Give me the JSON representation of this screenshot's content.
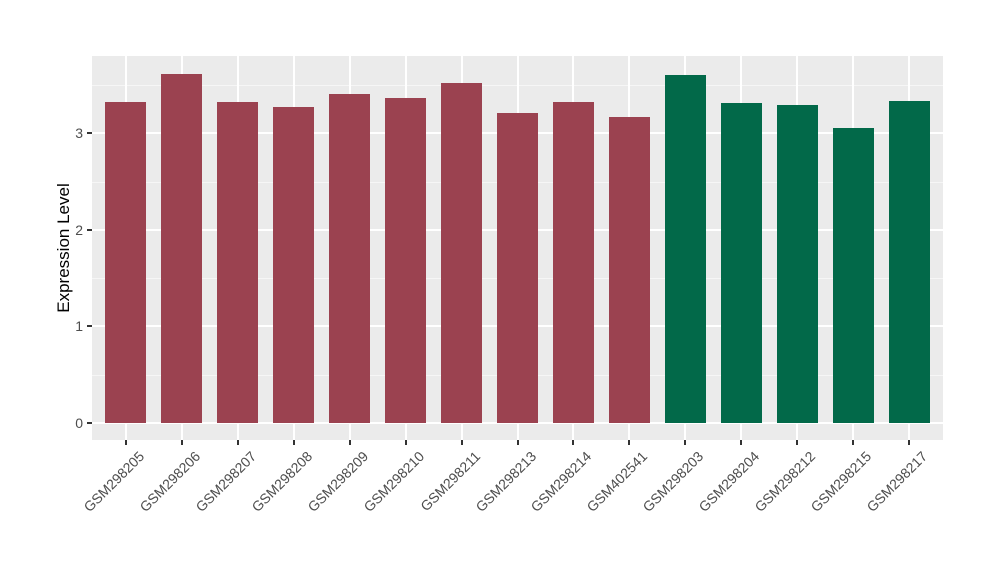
{
  "chart_data": {
    "type": "bar",
    "title": "",
    "xlabel": "",
    "ylabel": "Expression Level",
    "categories": [
      "GSM298205",
      "GSM298206",
      "GSM298207",
      "GSM298208",
      "GSM298209",
      "GSM298210",
      "GSM298211",
      "GSM298213",
      "GSM298214",
      "GSM402541",
      "GSM298203",
      "GSM298204",
      "GSM298212",
      "GSM298215",
      "GSM298217"
    ],
    "values": [
      3.32,
      3.61,
      3.32,
      3.27,
      3.41,
      3.36,
      3.52,
      3.21,
      3.32,
      3.17,
      3.6,
      3.31,
      3.29,
      3.05,
      3.33
    ],
    "bar_groups": [
      0,
      0,
      0,
      0,
      0,
      0,
      0,
      0,
      0,
      0,
      1,
      1,
      1,
      1,
      1
    ],
    "group_colors": [
      "#9B4250",
      "#026949"
    ],
    "yticks": [
      0,
      1,
      2,
      3
    ],
    "ytick_labels": [
      "0",
      "1",
      "2",
      "3"
    ],
    "minor_yticks": [
      0.5,
      1.5,
      2.5,
      3.5
    ],
    "ylim": [
      0,
      3.8
    ],
    "grid": true,
    "legend": "none",
    "x_label_angle": -45,
    "theme": {
      "figure_bg": "#FFFFFF",
      "panel_bg": "#EBEBEB",
      "grid_major": "#FFFFFF",
      "grid_minor": "#F6F6F6",
      "axis_text_color": "#4D4D4D",
      "axis_title_color": "#000000",
      "tick_mark_color": "#333333"
    }
  }
}
